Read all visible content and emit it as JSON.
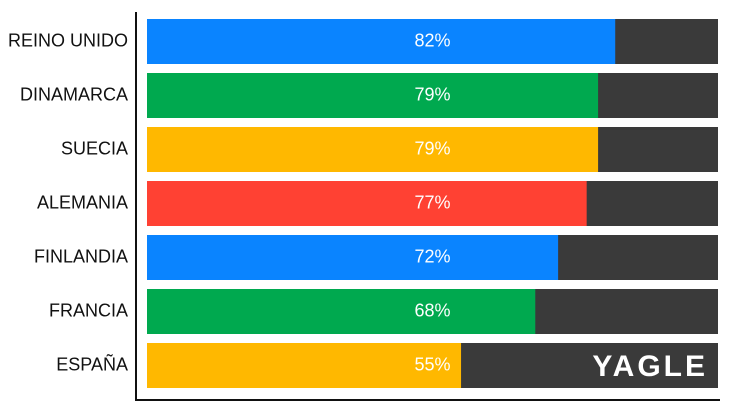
{
  "chart_data": {
    "type": "bar",
    "orientation": "horizontal",
    "categories": [
      "REINO UNIDO",
      "DINAMARCA",
      "SUECIA",
      "ALEMANIA",
      "FINLANDIA",
      "FRANCIA",
      "ESPAÑA"
    ],
    "values": [
      82,
      79,
      79,
      77,
      72,
      68,
      55
    ],
    "value_labels": [
      "82%",
      "79%",
      "79%",
      "77%",
      "72%",
      "68%",
      "55%"
    ],
    "colors": [
      "#0a84ff",
      "#00a94f",
      "#ffb800",
      "#ff4133",
      "#0a84ff",
      "#00a94f",
      "#ffb800"
    ],
    "track_color": "#3a3a3a",
    "xlim": [
      0,
      100
    ],
    "watermark": "YAGLE"
  }
}
